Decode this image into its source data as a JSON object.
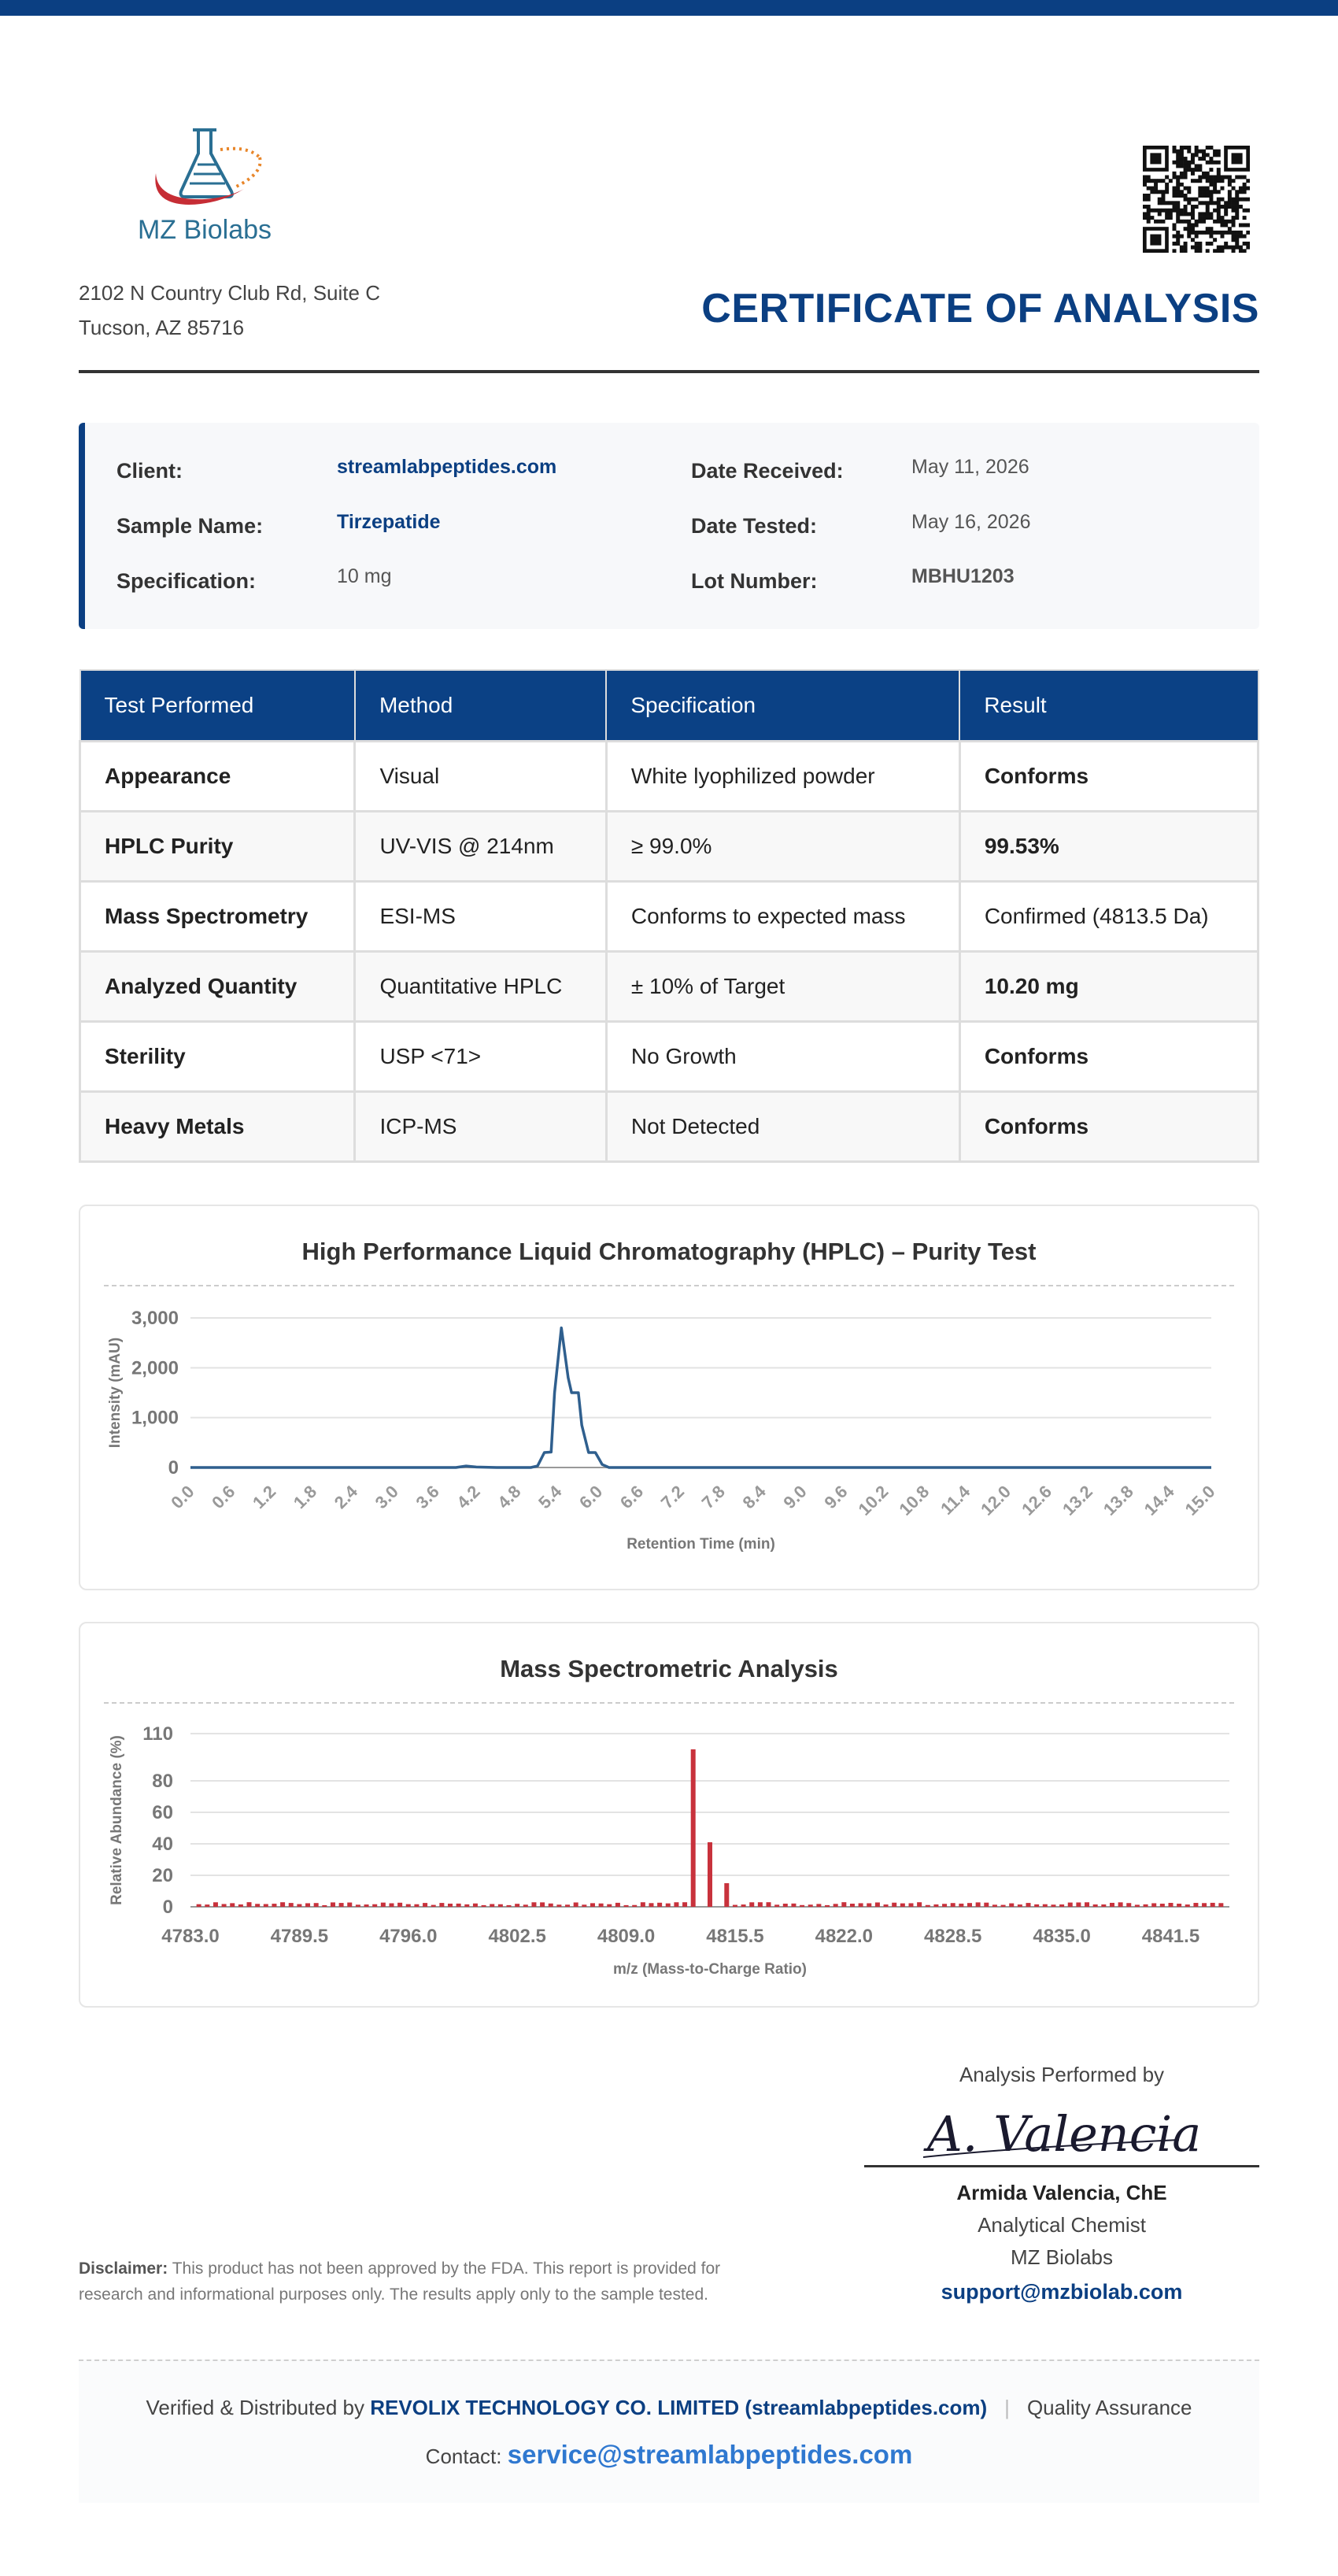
{
  "header": {
    "company": "MZ Biolabs",
    "address_line1": "2102 N Country Club Rd, Suite C",
    "address_line2": "Tucson, AZ 85716",
    "title": "CERTIFICATE OF ANALYSIS"
  },
  "info": {
    "client_label": "Client:",
    "client": "streamlabpeptides.com",
    "sample_label": "Sample Name:",
    "sample": "Tirzepatide",
    "spec_label": "Specification:",
    "spec": "10 mg",
    "received_label": "Date Received:",
    "received": "May 11, 2026",
    "tested_label": "Date Tested:",
    "tested": "May 16, 2026",
    "lot_label": "Lot Number:",
    "lot": "MBHU1203"
  },
  "table": {
    "headers": [
      "Test Performed",
      "Method",
      "Specification",
      "Result"
    ],
    "rows": [
      {
        "test": "Appearance",
        "method": "Visual",
        "spec": "White lyophilized powder",
        "result": "Conforms"
      },
      {
        "test": "HPLC Purity",
        "method": "UV-VIS @ 214nm",
        "spec": "≥ 99.0%",
        "result": "99.53%"
      },
      {
        "test": "Mass Spectrometry",
        "method": "ESI-MS",
        "spec": "Conforms to expected mass",
        "result": "Confirmed (4813.5 Da)"
      },
      {
        "test": "Analyzed Quantity",
        "method": "Quantitative HPLC",
        "spec": "± 10% of Target",
        "result": "10.20 mg"
      },
      {
        "test": "Sterility",
        "method": "USP <71>",
        "spec": "No Growth",
        "result": "Conforms"
      },
      {
        "test": "Heavy Metals",
        "method": "ICP-MS",
        "spec": "Not Detected",
        "result": "Conforms"
      }
    ]
  },
  "chart_data": [
    {
      "type": "line",
      "title": "High Performance Liquid Chromatography (HPLC) – Purity Test",
      "xlabel": "Retention Time (min)",
      "ylabel": "Intensity (mAU)",
      "xlim": [
        0,
        15
      ],
      "ylim": [
        0,
        3000
      ],
      "yticks": [
        "0",
        "1,000",
        "2,000",
        "3,000"
      ],
      "xticks": [
        "0.0",
        "0.6",
        "1.2",
        "1.8",
        "2.4",
        "3.0",
        "3.6",
        "4.2",
        "4.8",
        "5.4",
        "6.0",
        "6.6",
        "7.2",
        "7.8",
        "8.4",
        "9.0",
        "9.6",
        "10.2",
        "10.8",
        "11.4",
        "12.0",
        "12.6",
        "13.2",
        "13.8",
        "14.4",
        "15.0"
      ],
      "grid": true,
      "series": [
        {
          "color": "#2f5f8e",
          "x": [
            0,
            1,
            2,
            3,
            3.9,
            4.05,
            4.2,
            4.5,
            5.0,
            5.1,
            5.2,
            5.3,
            5.35,
            5.45,
            5.55,
            5.6,
            5.7,
            5.75,
            5.85,
            5.95,
            6.05,
            6.15,
            6.3,
            7,
            8,
            9,
            10,
            11,
            12,
            13,
            14,
            15
          ],
          "y": [
            0,
            0,
            0,
            0,
            0,
            30,
            10,
            0,
            0,
            30,
            300,
            310,
            1500,
            2800,
            1800,
            1500,
            1500,
            850,
            300,
            300,
            60,
            0,
            0,
            0,
            0,
            0,
            0,
            0,
            0,
            0,
            0,
            0
          ]
        }
      ]
    },
    {
      "type": "bar",
      "title": "Mass Spectrometric Analysis",
      "xlabel": "m/z (Mass-to-Charge Ratio)",
      "ylabel": "Relative Abundance (%)",
      "xlim": [
        4783.0,
        4845.0
      ],
      "ylim": [
        0,
        110
      ],
      "yticks": [
        "0",
        "20",
        "40",
        "60",
        "80",
        "110"
      ],
      "xticks": [
        "4783.0",
        "4789.5",
        "4796.0",
        "4802.5",
        "4809.0",
        "4815.5",
        "4822.0",
        "4828.5",
        "4835.0",
        "4841.5"
      ],
      "grid": true,
      "color": "#c8323c",
      "peaks": [
        {
          "x": 4813.0,
          "y": 100
        },
        {
          "x": 4814.0,
          "y": 41
        },
        {
          "x": 4815.0,
          "y": 15
        }
      ],
      "noise_level": [
        1,
        3
      ]
    }
  ],
  "signature": {
    "performed_by": "Analysis Performed by",
    "signature_text": "A. Valencia",
    "name": "Armida Valencia, ChE",
    "role": "Analytical Chemist",
    "org": "MZ Biolabs",
    "email": "support@mzbiolab.com"
  },
  "disclaimer": {
    "label": "Disclaimer:",
    "text": " This product has not been approved by the FDA. This report is provided for research and informational purposes only. The results apply only to the sample tested."
  },
  "footer": {
    "prefix": "Verified & Distributed by ",
    "company": "REVOLIX TECHNOLOGY CO. LIMITED (streamlabpeptides.com)",
    "qa": "Quality Assurance",
    "contact_label": "Contact: ",
    "contact_email": "service@streamlabpeptides.com"
  }
}
